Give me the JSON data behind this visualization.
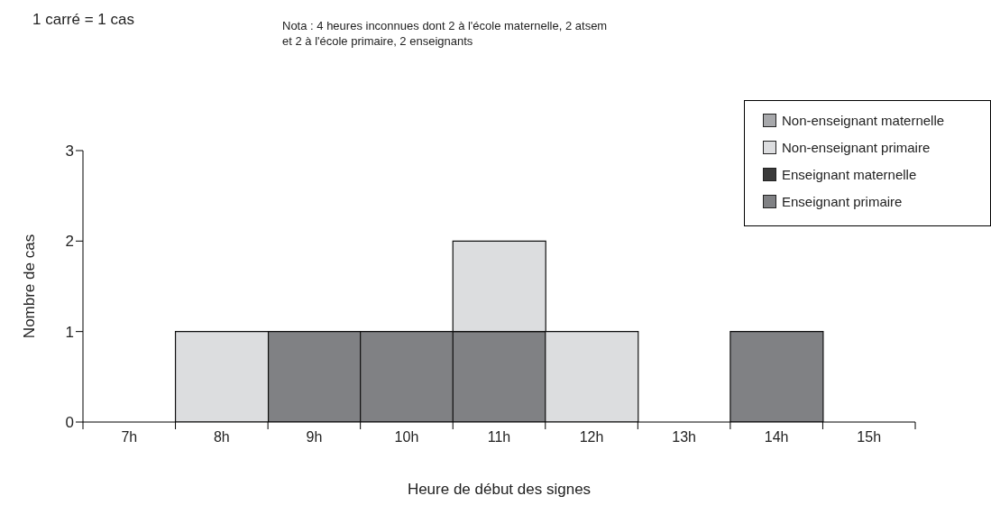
{
  "chart_data": {
    "type": "bar",
    "stacked": true,
    "xlabel": "Heure de début des signes",
    "ylabel": "Nombre de cas",
    "categories": [
      "7h",
      "8h",
      "9h",
      "10h",
      "11h",
      "12h",
      "13h",
      "14h",
      "15h"
    ],
    "series": [
      {
        "name": "Enseignant primaire",
        "color": "#808184",
        "values": [
          0,
          0,
          1,
          1,
          1,
          0,
          0,
          1,
          0
        ]
      },
      {
        "name": "Enseignant maternelle",
        "color": "#3a3a3a",
        "values": [
          0,
          0,
          0,
          0,
          0,
          0,
          0,
          0,
          0
        ]
      },
      {
        "name": "Non-enseignant primaire",
        "color": "#dcdddf",
        "values": [
          0,
          1,
          0,
          0,
          1,
          1,
          0,
          0,
          0
        ]
      },
      {
        "name": "Non-enseignant maternelle",
        "color": "#a7a8ab",
        "values": [
          0,
          0,
          0,
          0,
          0,
          0,
          0,
          0,
          0
        ]
      }
    ],
    "ylim": [
      0,
      3
    ],
    "yticks": [
      0,
      1,
      2,
      3
    ],
    "grid": false,
    "legend": "top right",
    "annotations": [
      "1 carré = 1 cas",
      "Nota : 4 heures inconnues dont 2 à l'école maternelle, 2 atsem\net 2 à l'école primaire, 2 enseignants"
    ]
  }
}
